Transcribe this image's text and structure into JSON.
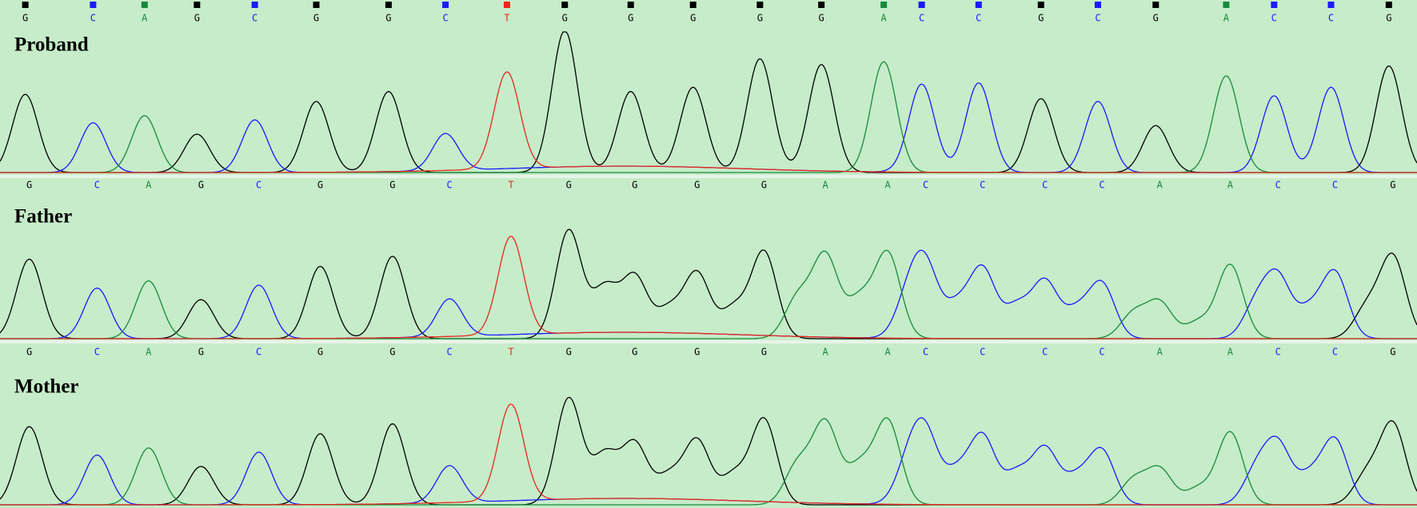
{
  "base_colors": {
    "G": "#000000",
    "C": "#1a1aff",
    "A": "#178a3c",
    "T": "#e8281a"
  },
  "panels": [
    {
      "label": "Proband",
      "bases": [
        "G",
        "C",
        "A",
        "G",
        "C",
        "G",
        "G",
        "C",
        "T",
        "G",
        "G",
        "G",
        "G",
        "G",
        "A",
        "C",
        "C",
        "G",
        "C",
        "G",
        "A",
        "C",
        "C",
        "G"
      ]
    },
    {
      "label": "Father",
      "bases": [
        "G",
        "C",
        "A",
        "G",
        "C",
        "G",
        "G",
        "C",
        "T",
        "G",
        "G",
        "G",
        "G",
        "A",
        "A",
        "C",
        "C",
        "C",
        "C",
        "A",
        "A",
        "C",
        "C",
        "G"
      ]
    },
    {
      "label": "Mother",
      "bases": [
        "G",
        "C",
        "A",
        "G",
        "C",
        "G",
        "G",
        "C",
        "T",
        "G",
        "G",
        "G",
        "G",
        "A",
        "A",
        "C",
        "C",
        "C",
        "C",
        "A",
        "A",
        "C",
        "C",
        "G"
      ]
    }
  ]
}
